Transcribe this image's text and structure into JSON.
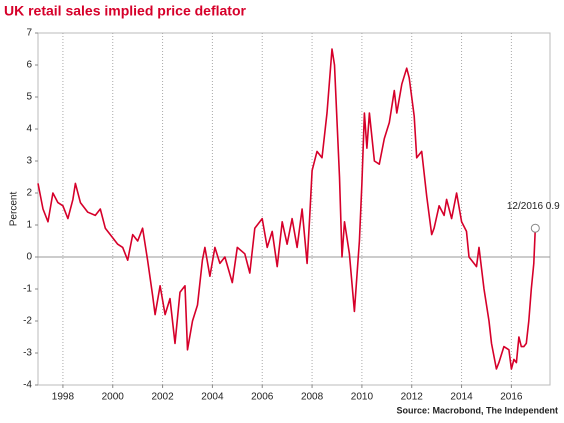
{
  "chart_data": {
    "type": "line",
    "title": "UK retail sales implied price deflator",
    "y_label": "Percent",
    "source": "Source: Macrobond, The Independent",
    "annotation": "12/2016 0.9",
    "x": [
      1997.0,
      1997.2,
      1997.4,
      1997.6,
      1997.8,
      1998.0,
      1998.2,
      1998.4,
      1998.5,
      1998.7,
      1999.0,
      1999.3,
      1999.5,
      1999.7,
      2000.0,
      2000.2,
      2000.4,
      2000.5,
      2000.6,
      2000.8,
      2001.0,
      2001.2,
      2001.4,
      2001.6,
      2001.7,
      2001.9,
      2002.1,
      2002.3,
      2002.5,
      2002.7,
      2002.9,
      2003.0,
      2003.2,
      2003.4,
      2003.6,
      2003.7,
      2003.9,
      2004.1,
      2004.3,
      2004.5,
      2004.8,
      2005.0,
      2005.3,
      2005.5,
      2005.7,
      2006.0,
      2006.2,
      2006.4,
      2006.6,
      2006.8,
      2007.0,
      2007.2,
      2007.4,
      2007.6,
      2007.8,
      2007.9,
      2008.0,
      2008.2,
      2008.4,
      2008.6,
      2008.8,
      2008.9,
      2009.1,
      2009.2,
      2009.3,
      2009.5,
      2009.7,
      2009.9,
      2010.0,
      2010.1,
      2010.2,
      2010.3,
      2010.5,
      2010.7,
      2010.9,
      2011.1,
      2011.3,
      2011.4,
      2011.6,
      2011.8,
      2011.9,
      2012.1,
      2012.2,
      2012.4,
      2012.6,
      2012.8,
      2012.9,
      2013.1,
      2013.3,
      2013.4,
      2013.6,
      2013.8,
      2014.0,
      2014.2,
      2014.3,
      2014.5,
      2014.6,
      2014.7,
      2014.9,
      2015.1,
      2015.2,
      2015.4,
      2015.5,
      2015.7,
      2015.9,
      2016.0,
      2016.1,
      2016.2,
      2016.3,
      2016.4,
      2016.5,
      2016.6,
      2016.7,
      2016.8,
      2016.9,
      2016.96
    ],
    "series": [
      {
        "name": "UK retail sales implied price deflator",
        "color": "#d6002a",
        "values": [
          2.3,
          1.5,
          1.1,
          2.0,
          1.7,
          1.6,
          1.2,
          1.8,
          2.3,
          1.7,
          1.4,
          1.3,
          1.5,
          0.9,
          0.6,
          0.4,
          0.3,
          0.1,
          -0.1,
          0.7,
          0.5,
          0.9,
          -0.1,
          -1.2,
          -1.8,
          -0.9,
          -1.8,
          -1.3,
          -2.7,
          -1.1,
          -0.9,
          -2.9,
          -2.0,
          -1.5,
          -0.1,
          0.3,
          -0.6,
          0.3,
          -0.2,
          0.0,
          -0.8,
          0.3,
          0.1,
          -0.5,
          0.9,
          1.2,
          0.3,
          0.8,
          -0.3,
          1.1,
          0.4,
          1.2,
          0.3,
          1.5,
          -0.2,
          1.2,
          2.7,
          3.3,
          3.1,
          4.5,
          6.5,
          6.0,
          2.5,
          0.0,
          1.1,
          0.1,
          -1.7,
          0.5,
          2.3,
          4.5,
          3.4,
          4.5,
          3.0,
          2.9,
          3.7,
          4.2,
          5.2,
          4.5,
          5.4,
          5.9,
          5.6,
          4.4,
          3.1,
          3.3,
          1.9,
          0.7,
          0.9,
          1.6,
          1.3,
          1.8,
          1.2,
          2.0,
          1.1,
          0.8,
          0.0,
          -0.2,
          -0.3,
          0.3,
          -1.0,
          -2.0,
          -2.7,
          -3.5,
          -3.3,
          -2.8,
          -2.9,
          -3.5,
          -3.2,
          -3.3,
          -2.5,
          -2.8,
          -2.8,
          -2.7,
          -2.0,
          -1.0,
          -0.2,
          0.9
        ]
      }
    ],
    "xlim": [
      1997.0,
      2017.55
    ],
    "xticks": [
      1998,
      2000,
      2002,
      2004,
      2006,
      2008,
      2010,
      2012,
      2014,
      2016
    ],
    "ylim": [
      -4,
      7
    ],
    "yticks": [
      -4,
      -3,
      -2,
      -1,
      0,
      1,
      2,
      3,
      4,
      5,
      6,
      7
    ],
    "grid": "x"
  }
}
